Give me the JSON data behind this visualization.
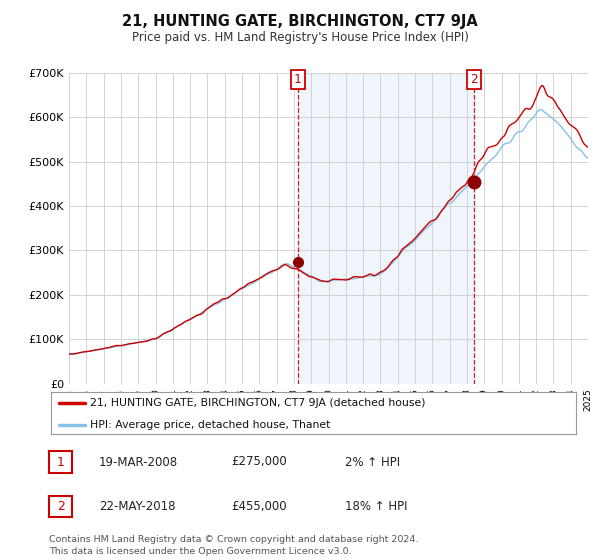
{
  "title": "21, HUNTING GATE, BIRCHINGTON, CT7 9JA",
  "subtitle": "Price paid vs. HM Land Registry's House Price Index (HPI)",
  "legend_line1": "21, HUNTING GATE, BIRCHINGTON, CT7 9JA (detached house)",
  "legend_line2": "HPI: Average price, detached house, Thanet",
  "transaction1_date": "19-MAR-2008",
  "transaction1_price": "£275,000",
  "transaction1_hpi": "2% ↑ HPI",
  "transaction2_date": "22-MAY-2018",
  "transaction2_price": "£455,000",
  "transaction2_hpi": "18% ↑ HPI",
  "footer": "Contains HM Land Registry data © Crown copyright and database right 2024.\nThis data is licensed under the Open Government Licence v3.0.",
  "price_color": "#cc0000",
  "hpi_color": "#85c1e9",
  "shade_color": "#ddeeff",
  "marker_color": "#8b0000",
  "background_color": "#ffffff",
  "grid_color": "#cccccc",
  "ylim_min": 0,
  "ylim_max": 700000,
  "start_year": 1995,
  "end_year": 2025,
  "transaction1_year": 2008.22,
  "transaction2_year": 2018.39
}
